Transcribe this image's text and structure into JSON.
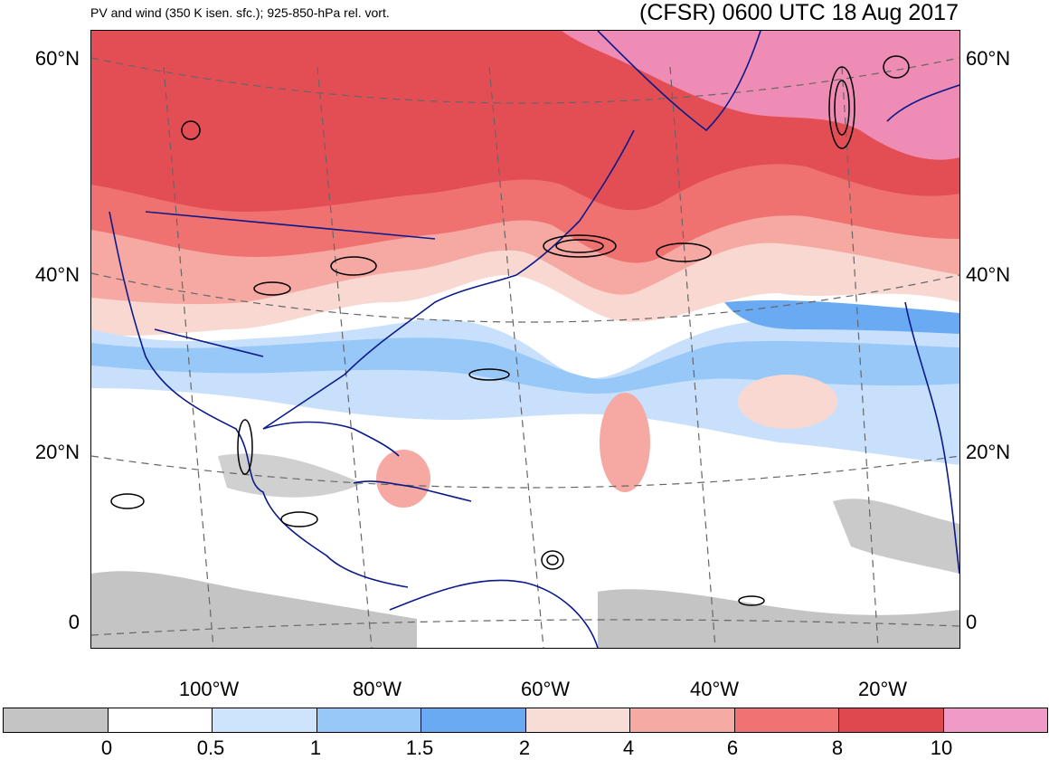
{
  "header": {
    "title_left": "PV and wind (350 K isen. sfc.); 925-850-hPa rel. vort.",
    "title_right": "(CFSR) 0600 UTC 18 Aug 2017"
  },
  "map": {
    "lat_labels_left": [
      "60°N",
      "40°N",
      "20°N",
      "0"
    ],
    "lat_labels_right": [
      "60°N",
      "40°N",
      "20°N",
      "0"
    ],
    "lon_labels": [
      "100°W",
      "80°W",
      "60°W",
      "40°W",
      "20°W"
    ],
    "colors": {
      "low_pv_gray": "#c4c4c4",
      "blue_light": "#c8e0fc",
      "blue_mid": "#98c8f8",
      "blue_dark": "#6aaaf2",
      "pink_light": "#f8d8d0",
      "pink_mid": "#f6a8a2",
      "red_mid": "#f07270",
      "red_dark": "#e04850",
      "magenta": "#f098c8",
      "coastline": "#0a1a8a",
      "vorticity_contour": "#000000",
      "grid_dash": "#666666"
    }
  },
  "colorbar": {
    "labels": [
      "0",
      "0.5",
      "1",
      "1.5",
      "2",
      "4",
      "6",
      "8",
      "10"
    ],
    "colors": [
      "#c4c4c4",
      "#ffffff",
      "#cde4fc",
      "#98c8f8",
      "#6aaaf2",
      "#f8dcd6",
      "#f6aaa4",
      "#f07272",
      "#e04850",
      "#f09ac8"
    ]
  }
}
